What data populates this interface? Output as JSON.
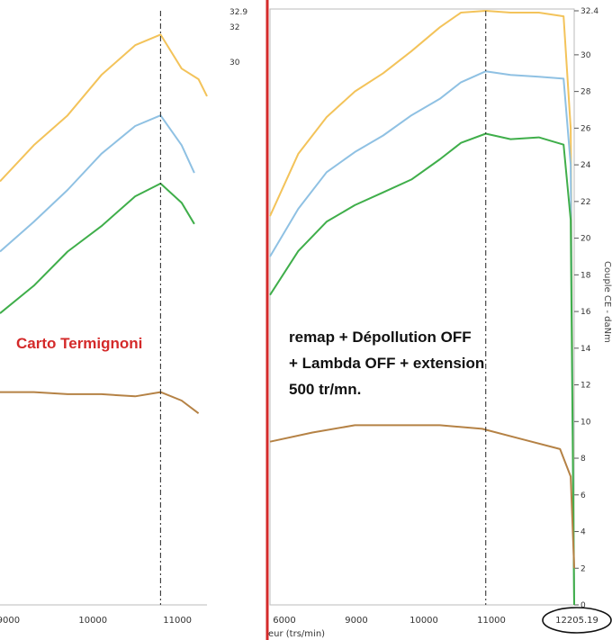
{
  "chart_data": [
    {
      "type": "line",
      "xlim": [
        8900,
        11350
      ],
      "x_ticks": [
        "9000",
        "10000",
        "11000"
      ],
      "right_labels": [
        "32.9",
        "32",
        "30"
      ],
      "annotation": "Carto Termignoni",
      "series": [
        {
          "color": "#f3c35a",
          "points": [
            [
              8900,
              19.9
            ],
            [
              9300,
              21.6
            ],
            [
              9700,
              23.0
            ],
            [
              10100,
              24.9
            ],
            [
              10500,
              26.3
            ],
            [
              10800,
              26.8
            ],
            [
              11050,
              25.2
            ],
            [
              11250,
              24.7
            ],
            [
              11350,
              23.9
            ]
          ]
        },
        {
          "color": "#8fc1e3",
          "points": [
            [
              8900,
              16.6
            ],
            [
              9300,
              18.0
            ],
            [
              9700,
              19.5
            ],
            [
              10100,
              21.2
            ],
            [
              10500,
              22.5
            ],
            [
              10800,
              23.0
            ],
            [
              11050,
              21.6
            ],
            [
              11200,
              20.3
            ]
          ]
        },
        {
          "color": "#3fae4a",
          "points": [
            [
              8900,
              13.7
            ],
            [
              9300,
              15.0
            ],
            [
              9700,
              16.6
            ],
            [
              10100,
              17.8
            ],
            [
              10500,
              19.2
            ],
            [
              10800,
              19.8
            ],
            [
              11050,
              18.9
            ],
            [
              11200,
              17.9
            ]
          ]
        },
        {
          "color": "#b58245",
          "points": [
            [
              8900,
              10.0
            ],
            [
              9300,
              10.0
            ],
            [
              9700,
              9.9
            ],
            [
              10100,
              9.9
            ],
            [
              10500,
              9.8
            ],
            [
              10800,
              10.0
            ],
            [
              11050,
              9.6
            ],
            [
              11250,
              9.0
            ]
          ]
        }
      ],
      "vline_x": 10800
    },
    {
      "type": "line",
      "xlim": [
        7800,
        12100
      ],
      "x_ticks": [
        "6000",
        "9000",
        "10000",
        "11000"
      ],
      "x_label_partial": "eur (trs/min)",
      "x_end_value": "12205.19",
      "y_ticks": [
        "32.4",
        "30",
        "28",
        "26",
        "24",
        "22",
        "20",
        "18",
        "16",
        "14",
        "12",
        "10",
        "8",
        "6",
        "4",
        "2",
        "0"
      ],
      "y_axis_title": "Couple CE - daNm",
      "annotation_lines": [
        "remap + Dépollution OFF",
        "+ Lambda OFF + extension",
        "500 tr/mn."
      ],
      "series": [
        {
          "color": "#f3c35a",
          "points": [
            [
              7800,
              21.2
            ],
            [
              8200,
              24.6
            ],
            [
              8600,
              26.6
            ],
            [
              9000,
              28.0
            ],
            [
              9400,
              29.0
            ],
            [
              9800,
              30.2
            ],
            [
              10200,
              31.5
            ],
            [
              10500,
              32.3
            ],
            [
              10850,
              32.4
            ],
            [
              11200,
              32.3
            ],
            [
              11600,
              32.3
            ],
            [
              11950,
              32.1
            ],
            [
              12050,
              26.0
            ],
            [
              12100,
              0.1
            ]
          ]
        },
        {
          "color": "#8fc1e3",
          "points": [
            [
              7800,
              19.0
            ],
            [
              8200,
              21.6
            ],
            [
              8600,
              23.6
            ],
            [
              9000,
              24.7
            ],
            [
              9400,
              25.6
            ],
            [
              9800,
              26.7
            ],
            [
              10200,
              27.6
            ],
            [
              10500,
              28.5
            ],
            [
              10850,
              29.1
            ],
            [
              11200,
              28.9
            ],
            [
              11600,
              28.8
            ],
            [
              11950,
              28.7
            ],
            [
              12050,
              24.0
            ],
            [
              12100,
              0.0
            ]
          ]
        },
        {
          "color": "#3fae4a",
          "points": [
            [
              7800,
              16.9
            ],
            [
              8200,
              19.3
            ],
            [
              8600,
              20.9
            ],
            [
              9000,
              21.8
            ],
            [
              9400,
              22.5
            ],
            [
              9800,
              23.2
            ],
            [
              10200,
              24.3
            ],
            [
              10500,
              25.2
            ],
            [
              10850,
              25.7
            ],
            [
              11200,
              25.4
            ],
            [
              11600,
              25.5
            ],
            [
              11950,
              25.1
            ],
            [
              12050,
              21.0
            ],
            [
              12100,
              0.0
            ]
          ]
        },
        {
          "color": "#b58245",
          "points": [
            [
              7800,
              8.9
            ],
            [
              8400,
              9.4
            ],
            [
              9000,
              9.8
            ],
            [
              9600,
              9.8
            ],
            [
              10200,
              9.8
            ],
            [
              10800,
              9.6
            ],
            [
              11400,
              9.0
            ],
            [
              11900,
              8.5
            ],
            [
              12050,
              7.0
            ],
            [
              12100,
              2.0
            ]
          ]
        }
      ],
      "vline_x": 10850
    }
  ]
}
